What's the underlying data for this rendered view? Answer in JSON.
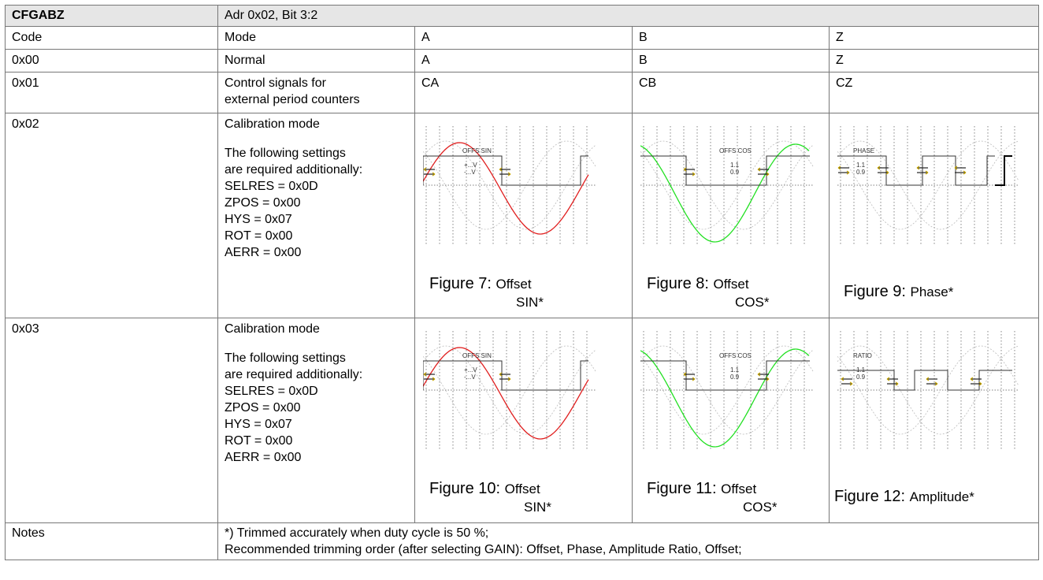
{
  "header": {
    "name": "CFGABZ",
    "address": "Adr 0x02, Bit 3:2"
  },
  "columns": [
    "Code",
    "Mode",
    "A",
    "B",
    "Z"
  ],
  "rows": [
    {
      "code": "0x00",
      "mode": "Normal",
      "a": "A",
      "b": "B",
      "z": "Z"
    },
    {
      "code": "0x01",
      "mode_lines": [
        "Control signals for",
        "external period counters"
      ],
      "a": "CA",
      "b": "CB",
      "z": "CZ"
    }
  ],
  "calibration_rows": [
    {
      "code": "0x02",
      "mode_title": "Calibration mode",
      "mode_intro": [
        "The following settings",
        "are required additionally:"
      ],
      "settings": [
        "SELRES = 0x0D",
        "ZPOS = 0x00",
        "HYS = 0x07",
        "ROT = 0x00",
        "AERR = 0x00"
      ],
      "figures": [
        {
          "label": "Figure 7:",
          "caption_1": "Offset",
          "caption_2": "SIN*",
          "plot_label": "OFFS SIN",
          "sub_top": "+...V",
          "sub_bot": "-...V",
          "color": "#e01e1e"
        },
        {
          "label": "Figure 8:",
          "caption_1": "Offset",
          "caption_2": "COS*",
          "plot_label": "OFFS COS",
          "sub_top": "1.1",
          "sub_bot": "0.9",
          "color": "#22e022"
        },
        {
          "label": "Figure 9:",
          "caption_1": "Phase*",
          "caption_2": "",
          "plot_label": "PHASE",
          "sub_top": "1.1",
          "sub_bot": "0.9",
          "color": "#999999"
        }
      ]
    },
    {
      "code": "0x03",
      "mode_title": "Calibration mode",
      "mode_intro": [
        "The following settings",
        "are required additionally:"
      ],
      "settings": [
        "SELRES = 0x0D",
        "ZPOS = 0x00",
        "HYS = 0x07",
        "ROT = 0x00",
        "AERR = 0x00"
      ],
      "figures": [
        {
          "label": "Figure 10:",
          "caption_1": "Offset",
          "caption_2": "SIN*",
          "plot_label": "OFFS SIN",
          "sub_top": "+...V",
          "sub_bot": "-...V",
          "color": "#e01e1e"
        },
        {
          "label": "Figure 11:",
          "caption_1": "Offset",
          "caption_2": "COS*",
          "plot_label": "OFFS COS",
          "sub_top": "1.1",
          "sub_bot": "0.9",
          "color": "#22e022"
        },
        {
          "label": "Figure 12:",
          "caption_1": "Amplitude*",
          "caption_2": "",
          "plot_label": "RATIO",
          "sub_top": "1.1",
          "sub_bot": "0.9",
          "color": "#999999"
        }
      ]
    }
  ],
  "notes": {
    "label": "Notes",
    "lines": [
      "*) Trimmed accurately when duty cycle is 50 %;",
      "Recommended trimming order (after selecting GAIN): Offset, Phase, Amplitude Ratio, Offset;"
    ]
  }
}
